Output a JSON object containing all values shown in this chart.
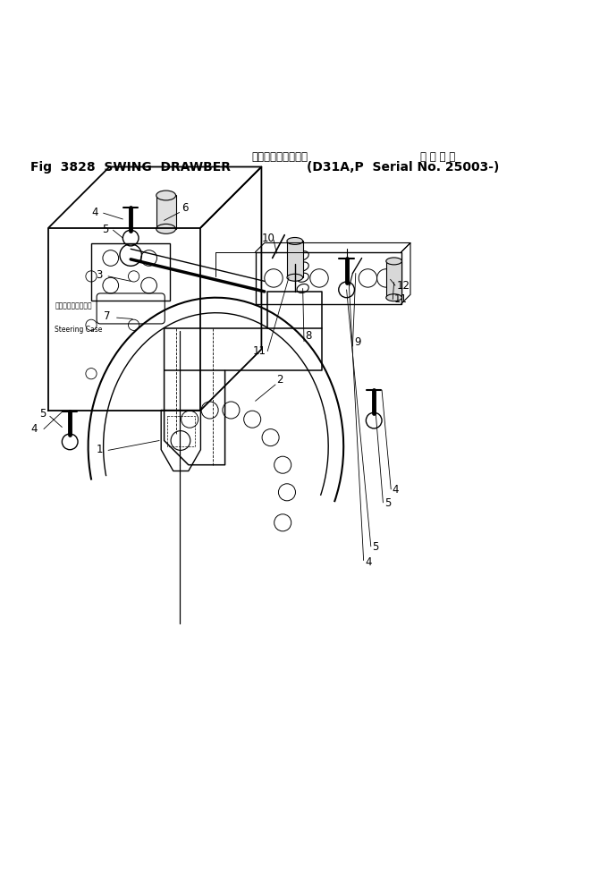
{
  "title_line1_jp": "スウィングドローバ",
  "title_applicable_jp": "適 用 号 機",
  "title_line2_left": "Fig  3828  SWING  DRAWBER",
  "title_line2_right": "D31A,P  Serial No. 25003-",
  "steering_case_jp": "ステアリングケース",
  "steering_case_en": "Steering Case",
  "bg_color": "#ffffff",
  "line_color": "#000000"
}
